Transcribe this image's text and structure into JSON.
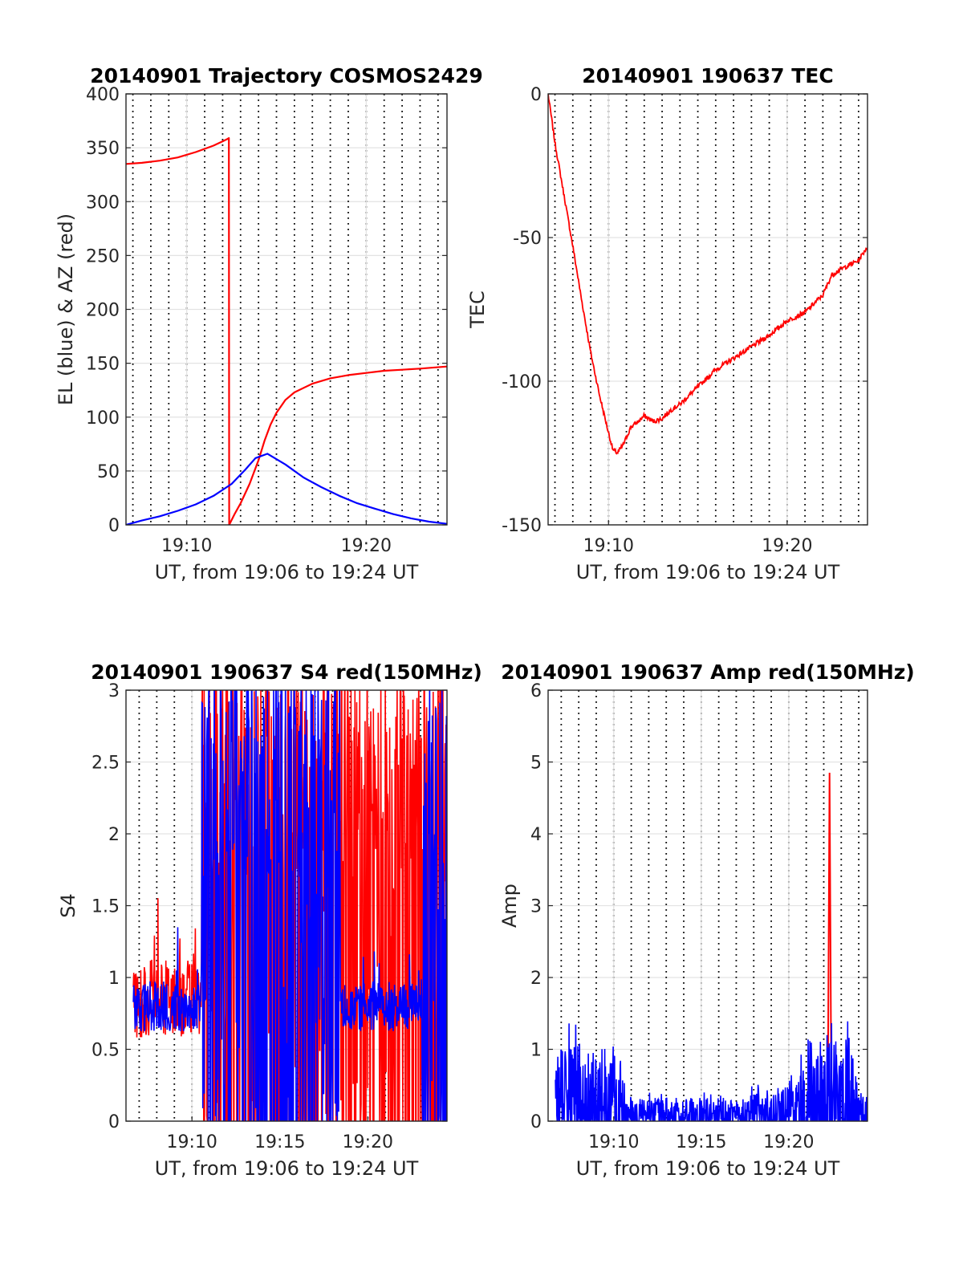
{
  "chart_data": [
    {
      "type": "line",
      "title": "20140901 Trajectory COSMOS2429",
      "xlabel": "UT, from 19:06 to 19:24 UT",
      "ylabel": "EL (blue) & AZ (red)",
      "xlim": [
        "19:06:37",
        "19:24:30"
      ],
      "ylim": [
        0,
        400
      ],
      "xticks": [
        "19:10",
        "19:20"
      ],
      "yticks": [
        "0",
        "50",
        "100",
        "150",
        "200",
        "250",
        "300",
        "350",
        "400"
      ],
      "grid": true,
      "colors": {
        "EL": "#0000ff",
        "AZ": "#ff0000"
      },
      "series": [
        {
          "color": "#ff0000",
          "x": [
            "19:06:37",
            "19:07:30",
            "19:08:30",
            "19:09:30",
            "19:10:30",
            "19:11:00",
            "19:11:30",
            "19:12:00",
            "19:12:15",
            "19:12:21",
            "19:12:22",
            "19:12:40",
            "19:13:00",
            "19:13:30",
            "19:14:00",
            "19:14:20",
            "19:14:40",
            "19:15:00",
            "19:15:30",
            "19:16:00",
            "19:17:00",
            "19:18:00",
            "19:19:00",
            "19:20:00",
            "19:21:00",
            "19:22:00",
            "19:23:00",
            "19:24:30"
          ],
          "values": [
            335,
            336,
            338,
            341,
            346,
            349,
            352,
            356,
            358,
            359,
            0,
            10,
            20,
            38,
            60,
            78,
            93,
            104,
            116,
            123,
            131,
            136,
            139,
            141,
            143,
            144,
            145,
            147
          ]
        },
        {
          "color": "#0000ff",
          "x": [
            "19:06:37",
            "19:07:30",
            "19:08:30",
            "19:09:30",
            "19:10:30",
            "19:11:30",
            "19:12:30",
            "19:13:15",
            "19:13:50",
            "19:14:30",
            "19:15:30",
            "19:16:30",
            "19:17:30",
            "19:18:30",
            "19:19:30",
            "19:20:30",
            "19:21:30",
            "19:22:30",
            "19:23:30",
            "19:24:30"
          ],
          "values": [
            0,
            4,
            8,
            13,
            19,
            27,
            38,
            51,
            62,
            66,
            56,
            44,
            35,
            27,
            20,
            15,
            10,
            6,
            3,
            1
          ]
        }
      ]
    },
    {
      "type": "line",
      "title": "20140901 190637 TEC",
      "xlabel": "UT, from 19:06 to 19:24 UT",
      "ylabel": "TEC",
      "xlim": [
        "19:06:37",
        "19:24:30"
      ],
      "ylim": [
        -150,
        0
      ],
      "xticks": [
        "19:10",
        "19:20"
      ],
      "yticks": [
        "-150",
        "-100",
        "-50",
        "0"
      ],
      "grid": true,
      "colors": {
        "TEC": "#ff0000"
      },
      "series": [
        {
          "color": "#ff0000",
          "x": [
            "19:06:37",
            "19:07:00",
            "19:07:30",
            "19:08:00",
            "19:08:30",
            "19:09:00",
            "19:09:30",
            "19:10:00",
            "19:10:15",
            "19:10:30",
            "19:10:50",
            "19:11:15",
            "19:11:40",
            "19:12:00",
            "19:12:30",
            "19:13:00",
            "19:13:30",
            "19:14:00",
            "19:15:00",
            "19:16:00",
            "19:17:00",
            "19:18:00",
            "19:19:00",
            "19:20:00",
            "19:21:00",
            "19:22:00",
            "19:22:30",
            "19:23:00",
            "19:24:00",
            "19:24:30"
          ],
          "values": [
            0,
            -17,
            -35,
            -53,
            -72,
            -90,
            -105,
            -118,
            -124,
            -125,
            -122,
            -116,
            -114,
            -112,
            -114,
            -113,
            -110,
            -108,
            -102,
            -96,
            -92,
            -88,
            -84,
            -79,
            -76,
            -70,
            -63,
            -61,
            -58,
            -53
          ]
        }
      ]
    },
    {
      "type": "line",
      "title": "20140901 190637 S4 red(150MHz)",
      "xlabel": "UT, from 19:06 to 19:24 UT",
      "ylabel": "S4",
      "xlim": [
        "19:06:15",
        "19:24:30"
      ],
      "ylim": [
        0,
        3
      ],
      "xticks": [
        "19:10",
        "19:15",
        "19:20"
      ],
      "yticks": [
        "0",
        "0.5",
        "1",
        "1.5",
        "2",
        "2.5",
        "3"
      ],
      "grid": true,
      "colors": {
        "red": "#ff0000",
        "blue": "#0000ff"
      },
      "series": [
        {
          "color": "#ff0000",
          "x": [
            "19:06:40",
            "19:10:30",
            "19:10:50",
            "19:17:40",
            "19:18:00",
            "19:24:30"
          ],
          "values": [
            0.85,
            0.85,
            1.8,
            1.5,
            2.5,
            2.5
          ]
        },
        {
          "color": "#0000ff",
          "x": [
            "19:06:40",
            "19:10:30",
            "19:10:50",
            "19:18:00",
            "19:18:30",
            "19:23:00",
            "19:23:30",
            "19:24:30"
          ],
          "values": [
            0.8,
            0.8,
            2.0,
            2.0,
            0.8,
            0.8,
            2.0,
            2.0
          ]
        }
      ]
    },
    {
      "type": "line",
      "title": "20140901 190637 Amp red(150MHz)",
      "xlabel": "UT, from 19:06 to 19:24 UT",
      "ylabel": "Amp",
      "xlim": [
        "19:06:15",
        "19:24:30"
      ],
      "ylim": [
        0,
        6
      ],
      "xticks": [
        "19:10",
        "19:15",
        "19:20"
      ],
      "yticks": [
        "0",
        "1",
        "2",
        "3",
        "4",
        "5",
        "6"
      ],
      "grid": true,
      "colors": {
        "red": "#ff0000",
        "blue": "#0000ff"
      },
      "series": [
        {
          "color": "#ff0000",
          "x": [
            "19:22:15",
            "19:22:20",
            "19:22:25"
          ],
          "values": [
            1.0,
            4.85,
            1.0
          ]
        },
        {
          "color": "#0000ff",
          "x": [
            "19:06:40",
            "19:10:30",
            "19:10:40",
            "19:17:30",
            "19:18:00",
            "19:20:30",
            "19:21:00",
            "19:23:30",
            "19:24:00",
            "19:24:30"
          ],
          "values": [
            0.8,
            0.8,
            0.25,
            0.25,
            0.3,
            0.4,
            0.9,
            0.9,
            0.3,
            0.3
          ]
        }
      ]
    }
  ]
}
